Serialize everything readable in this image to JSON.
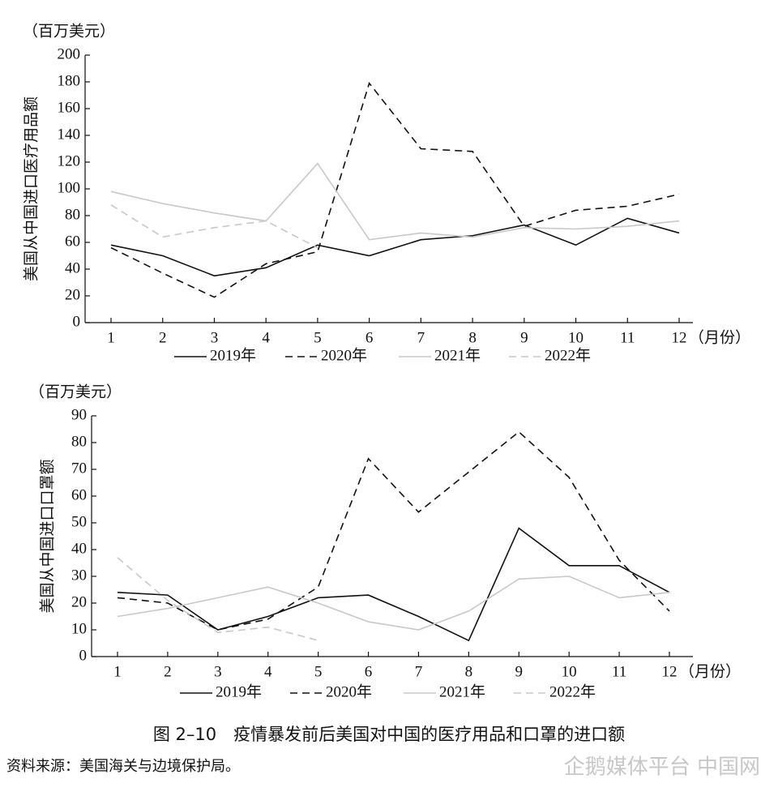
{
  "chart_data": [
    {
      "type": "line",
      "unit_label": "（百万美元）",
      "y_label": "美国从中国进口医疗用品额",
      "x_label": "（月份）",
      "categories": [
        "1",
        "2",
        "3",
        "4",
        "5",
        "6",
        "7",
        "8",
        "9",
        "10",
        "11",
        "12"
      ],
      "ylim": [
        0,
        200
      ],
      "yticks": [
        0,
        20,
        40,
        60,
        80,
        100,
        120,
        140,
        160,
        180,
        200
      ],
      "series": [
        {
          "name": "2019年",
          "color": "#111111",
          "dashed": false,
          "values": [
            58,
            50,
            35,
            41,
            58,
            50,
            62,
            65,
            73,
            58,
            78,
            67
          ]
        },
        {
          "name": "2020年",
          "color": "#111111",
          "dashed": true,
          "values": [
            56,
            37,
            19,
            44,
            53,
            179,
            130,
            128,
            72,
            84,
            87,
            96
          ]
        },
        {
          "name": "2021年",
          "color": "#c8c8c8",
          "dashed": false,
          "values": [
            98,
            89,
            82,
            76,
            119,
            62,
            67,
            64,
            71,
            70,
            72,
            76
          ]
        },
        {
          "name": "2022年",
          "color": "#c8c8c8",
          "dashed": true,
          "values": [
            88,
            64,
            71,
            76,
            56,
            null,
            null,
            null,
            null,
            null,
            null,
            null
          ]
        }
      ]
    },
    {
      "type": "line",
      "unit_label": "（百万美元）",
      "y_label": "美国从中国进口口罩额",
      "x_label": "（月份）",
      "categories": [
        "1",
        "2",
        "3",
        "4",
        "5",
        "6",
        "7",
        "8",
        "9",
        "10",
        "11",
        "12"
      ],
      "ylim": [
        0,
        90
      ],
      "yticks": [
        0,
        10,
        20,
        30,
        40,
        50,
        60,
        70,
        80,
        90
      ],
      "series": [
        {
          "name": "2019年",
          "color": "#111111",
          "dashed": false,
          "values": [
            24,
            23,
            10,
            15,
            22,
            23,
            15,
            6,
            48,
            34,
            34,
            24
          ]
        },
        {
          "name": "2020年",
          "color": "#111111",
          "dashed": true,
          "values": [
            22,
            20,
            10,
            14,
            26,
            74,
            54,
            69,
            84,
            67,
            36,
            17
          ]
        },
        {
          "name": "2021年",
          "color": "#c8c8c8",
          "dashed": false,
          "values": [
            15,
            18,
            22,
            26,
            20,
            13,
            10,
            17,
            29,
            30,
            22,
            24
          ]
        },
        {
          "name": "2022年",
          "color": "#c8c8c8",
          "dashed": true,
          "values": [
            37,
            21,
            9,
            11,
            6,
            null,
            null,
            null,
            null,
            null,
            null,
            null
          ]
        }
      ]
    }
  ],
  "caption": "图 2–10　疫情暴发前后美国对中国的医疗用品和口罩的进口额",
  "source": "资料来源：美国海关与边境保护局。",
  "watermark": "企鹅媒体平台 中国网"
}
